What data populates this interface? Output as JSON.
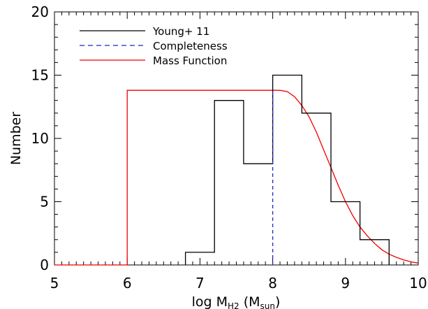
{
  "chart_data": {
    "type": "line",
    "title": "",
    "xlabel": {
      "main": "log M",
      "sub": "H2",
      "unit_open": " (M",
      "unit_sub": "sun",
      "unit_close": ")"
    },
    "ylabel": "Number",
    "xlim": [
      5,
      10
    ],
    "ylim": [
      0,
      20
    ],
    "xticks": [
      5,
      6,
      7,
      8,
      9,
      10
    ],
    "yticks": [
      0,
      5,
      10,
      15,
      20
    ],
    "legend_position": "top-left",
    "grid": false,
    "histogram": {
      "name": "Young+ 11",
      "color": "#000000",
      "bin_edges": [
        6.8,
        7.2,
        7.6,
        8.0,
        8.4,
        8.8,
        9.2,
        9.6
      ],
      "counts": [
        1,
        13,
        8,
        15,
        12,
        5,
        2
      ]
    },
    "completeness": {
      "name": "Completeness",
      "color": "#2222cc",
      "x": 8.0,
      "y_range": [
        0,
        13.8
      ]
    },
    "mass_function": {
      "name": "Mass Function",
      "color": "#ee0000",
      "x": [
        5.0,
        6.0,
        6.0,
        8.0,
        8.1,
        8.2,
        8.3,
        8.4,
        8.5,
        8.6,
        8.7,
        8.8,
        8.9,
        9.0,
        9.1,
        9.2,
        9.3,
        9.4,
        9.5,
        9.6,
        9.7,
        9.8,
        9.9,
        10.0
      ],
      "y": [
        0,
        0,
        13.8,
        13.8,
        13.8,
        13.7,
        13.3,
        12.6,
        11.7,
        10.5,
        9.1,
        7.7,
        6.3,
        5.0,
        3.9,
        3.0,
        2.3,
        1.7,
        1.2,
        0.85,
        0.6,
        0.4,
        0.25,
        0.15
      ]
    }
  }
}
